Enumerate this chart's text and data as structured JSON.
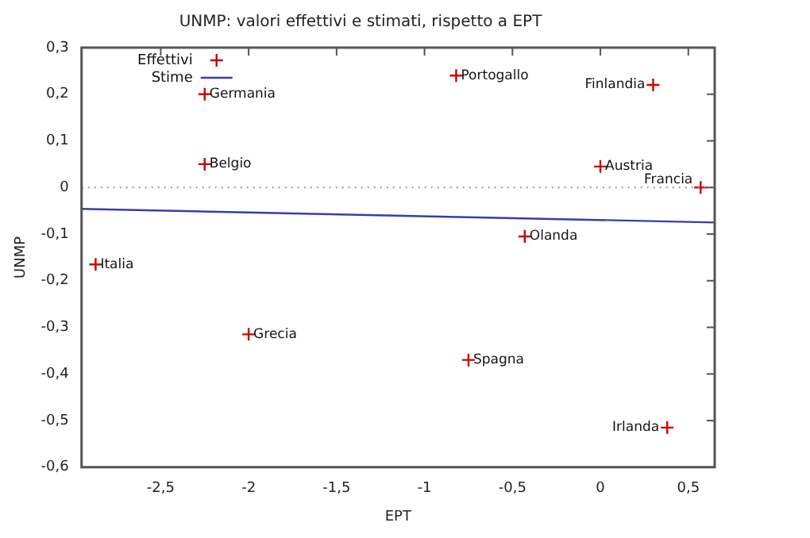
{
  "chart_data": {
    "type": "scatter",
    "title": "UNMP: valori effettivi e stimati, rispetto a EPT",
    "xlabel": "EPT",
    "ylabel": "UNMP",
    "series": [
      {
        "name": "Effettivi",
        "type": "scatter",
        "color": "#cc0000",
        "marker": "cross",
        "x": [
          -2.25,
          -2.25,
          -0.82,
          0.3,
          0.0,
          0.57,
          -0.43,
          -2.87,
          -2.0,
          -0.75,
          0.38
        ],
        "values": [
          0.2,
          0.05,
          0.24,
          0.22,
          0.045,
          0.0,
          -0.105,
          -0.165,
          -0.315,
          -0.37,
          -0.515
        ]
      },
      {
        "name": "Stime",
        "type": "line",
        "color": "#3c3ca8",
        "marker": "none",
        "line_style": "solid",
        "x": [
          -2.95,
          0.65
        ],
        "values": [
          -0.046,
          -0.075
        ]
      }
    ],
    "annotations": [
      {
        "text": "Germania",
        "x": -2.25,
        "y": 0.2
      },
      {
        "text": "Belgio",
        "x": -2.25,
        "y": 0.05
      },
      {
        "text": "Portogallo",
        "x": -0.82,
        "y": 0.24
      },
      {
        "text": "Finlandia",
        "x": 0.3,
        "y": 0.22
      },
      {
        "text": "Austria",
        "x": 0.0,
        "y": 0.045
      },
      {
        "text": "Francia",
        "x": 0.57,
        "y": 0.0
      },
      {
        "text": "Olanda",
        "x": -0.43,
        "y": -0.105
      },
      {
        "text": "Italia",
        "x": -2.87,
        "y": -0.165
      },
      {
        "text": "Grecia",
        "x": -2.0,
        "y": -0.315
      },
      {
        "text": "Spagna",
        "x": -0.75,
        "y": -0.37
      },
      {
        "text": "Irlanda",
        "x": 0.38,
        "y": -0.515
      }
    ],
    "ref_lines": [
      {
        "axis": "y",
        "value": 0,
        "color": "#999999",
        "line_style": "dotted"
      }
    ],
    "xlim": [
      -2.95,
      0.65
    ],
    "xticks": [
      {
        "value": -2.5,
        "label": "-2,5"
      },
      -2,
      {
        "value": -1.5,
        "label": "-1,5"
      },
      -1,
      {
        "value": -0.5,
        "label": "-0,5"
      },
      0,
      {
        "value": 0.5,
        "label": "0,5"
      }
    ],
    "ylim": [
      -0.6,
      0.3
    ],
    "yticks": [
      {
        "value": -0.6,
        "label": "-0,6"
      },
      {
        "value": -0.5,
        "label": "-0,5"
      },
      {
        "value": -0.4,
        "label": "-0,4"
      },
      {
        "value": -0.3,
        "label": "-0,3"
      },
      {
        "value": -0.2,
        "label": "-0,2"
      },
      {
        "value": -0.1,
        "label": "-0,1"
      },
      0,
      {
        "value": 0.1,
        "label": "0,1"
      },
      {
        "value": 0.2,
        "label": "0,2"
      },
      {
        "value": 0.3,
        "label": "0,3"
      }
    ],
    "grid": false,
    "legend": "top left"
  }
}
